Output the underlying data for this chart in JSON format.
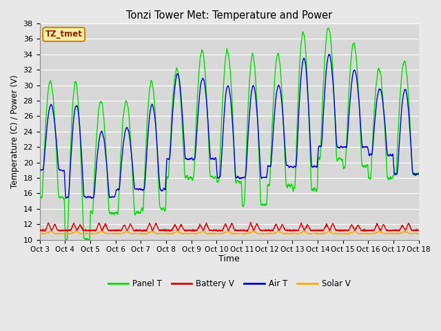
{
  "title": "Tonzi Tower Met: Temperature and Power",
  "xlabel": "Time",
  "ylabel": "Temperature (C) / Power (V)",
  "watermark": "TZ_tmet",
  "ylim": [
    10,
    38
  ],
  "yticks": [
    10,
    12,
    14,
    16,
    18,
    20,
    22,
    24,
    26,
    28,
    30,
    32,
    34,
    36,
    38
  ],
  "xtick_labels": [
    "Oct 3",
    "Oct 4",
    "Oct 5",
    "Oct 6",
    "Oct 7",
    "Oct 8",
    "Oct 9",
    "Oct 10",
    "Oct 11",
    "Oct 12",
    "Oct 13",
    "Oct 14",
    "Oct 15",
    "Oct 16",
    "Oct 17",
    "Oct 18"
  ],
  "panel_color": "#00dd00",
  "battery_color": "#dd0000",
  "air_color": "#0000dd",
  "solar_color": "#ffaa00",
  "legend_labels": [
    "Panel T",
    "Battery V",
    "Air T",
    "Solar V"
  ],
  "background_color": "#e8e8e8",
  "plot_bg_color": "#d8d8d8",
  "grid_color": "#ffffff",
  "watermark_bg": "#ffeeaa",
  "watermark_border": "#cc8800",
  "watermark_text_color": "#882200"
}
